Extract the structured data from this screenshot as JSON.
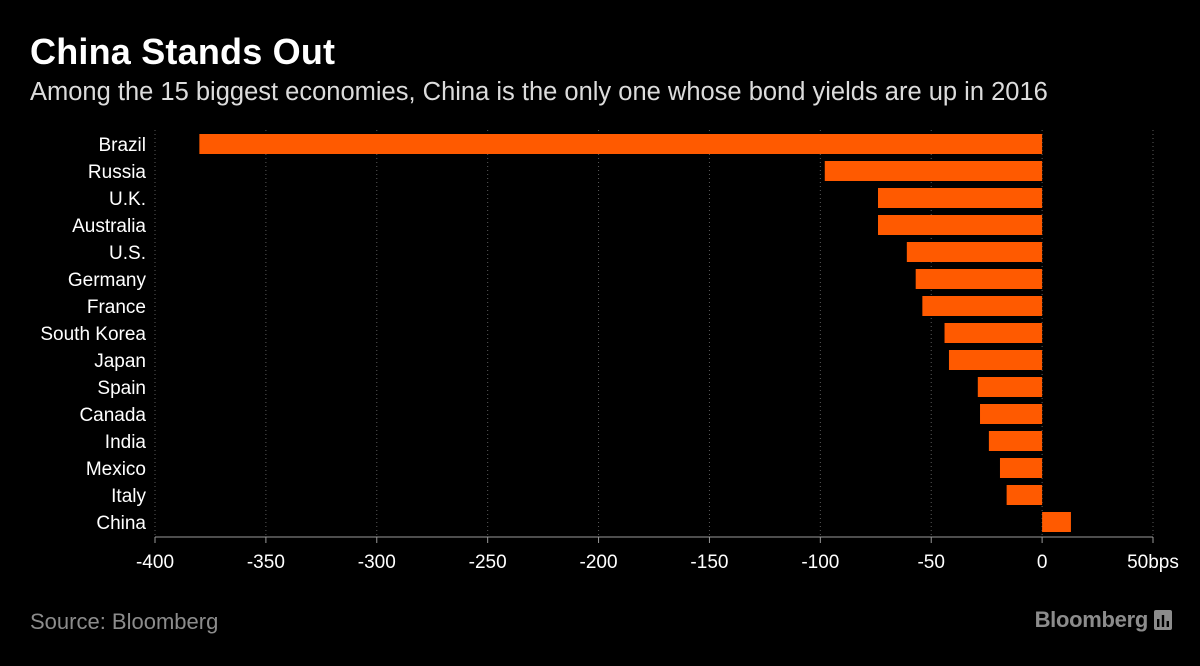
{
  "title": "China Stands Out",
  "subtitle": "Among the 15 biggest economies, China is the only one whose bond yields are up in 2016",
  "source": "Source: Bloomberg",
  "brand": "Bloomberg",
  "colors": {
    "background": "#000000",
    "bar": "#ff5a00",
    "text": "#ffffff",
    "muted": "#8c8c8c",
    "grid": "#5a5a5a"
  },
  "chart_data": {
    "type": "bar",
    "orientation": "horizontal",
    "categories": [
      "Brazil",
      "Russia",
      "U.K.",
      "Australia",
      "U.S.",
      "Germany",
      "France",
      "South Korea",
      "Japan",
      "Spain",
      "Canada",
      "India",
      "Mexico",
      "Italy",
      "China"
    ],
    "values": [
      -380,
      -98,
      -74,
      -74,
      -61,
      -57,
      -54,
      -44,
      -42,
      -29,
      -28,
      -24,
      -19,
      -16,
      13
    ],
    "xlim": [
      -400,
      50
    ],
    "x_ticks": [
      "-400",
      "-350",
      "-300",
      "-250",
      "-200",
      "-150",
      "-100",
      "-50",
      "0",
      "50bps"
    ],
    "grid": true
  }
}
